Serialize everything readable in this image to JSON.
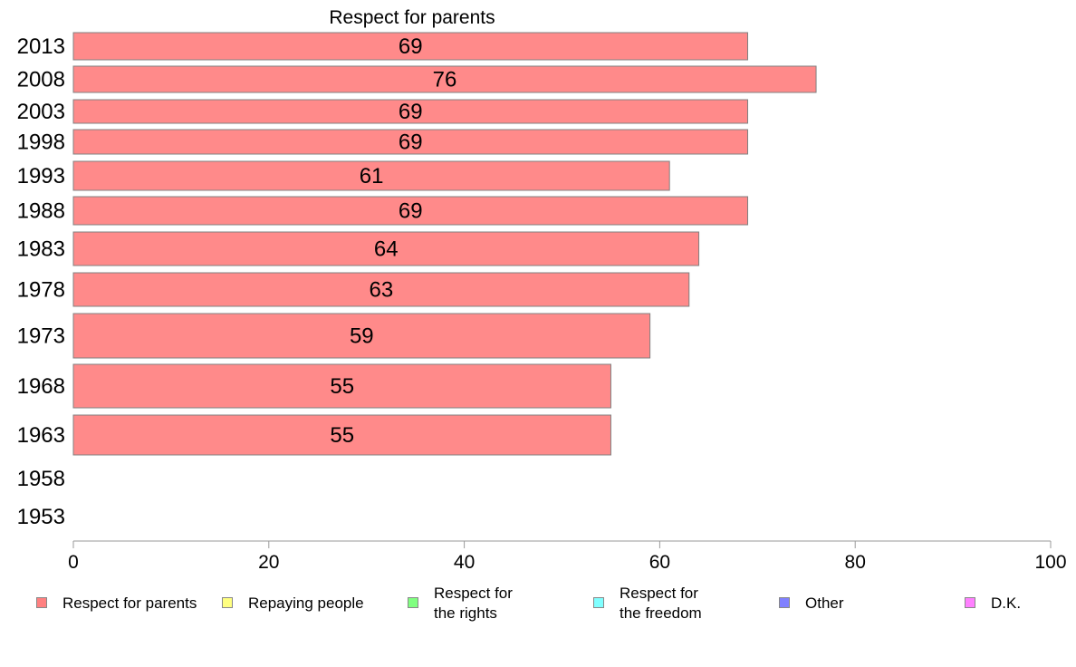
{
  "chart_data": {
    "type": "bar",
    "orientation": "horizontal",
    "title": "Respect for parents",
    "categories": [
      "2013",
      "2008",
      "2003",
      "1998",
      "1993",
      "1988",
      "1983",
      "1978",
      "1973",
      "1968",
      "1963",
      "1958",
      "1953"
    ],
    "series": [
      {
        "name": "Respect for parents",
        "values": [
          69,
          76,
          69,
          69,
          61,
          69,
          64,
          63,
          59,
          55,
          55,
          null,
          null
        ]
      }
    ],
    "data_labels": [
      "69",
      "76",
      "69",
      "69",
      "61",
      "69",
      "64",
      "63",
      "59",
      "55",
      "55",
      "",
      ""
    ],
    "xlim": [
      0,
      100
    ],
    "x_ticks": [
      0,
      20,
      40,
      60,
      80,
      100
    ],
    "x_tick_labels": [
      "0",
      "20",
      "40",
      "60",
      "80",
      "100"
    ],
    "grid": false,
    "legend_position": "bottom",
    "bar_color": "#ff8a8a",
    "bar_edge_color": "#808080"
  },
  "legend": {
    "items": [
      {
        "label": "Respect for parents",
        "color": "#ff8080"
      },
      {
        "label": "Repaying people",
        "color": "#ffff80"
      },
      {
        "label": "Respect for\nthe rights",
        "color": "#80ff80"
      },
      {
        "label": "Respect for\nthe freedom",
        "color": "#80ffff"
      },
      {
        "label": "Other",
        "color": "#8080ff"
      },
      {
        "label": "D.K.",
        "color": "#ff80ff"
      }
    ]
  }
}
